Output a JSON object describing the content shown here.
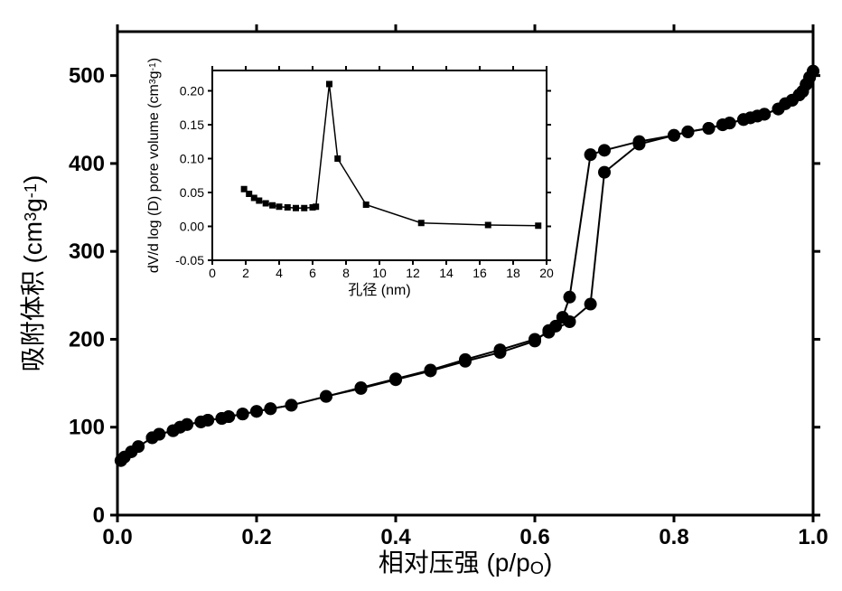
{
  "main_chart": {
    "type": "line",
    "xlabel": "相对压强 (p/p",
    "xlabel_sub": "O",
    "xlabel_close": ")",
    "ylabel": "吸附体积  (cm",
    "ylabel_sup": "3",
    "ylabel_mid": "g",
    "ylabel_sup2": "-1",
    "ylabel_close": ")",
    "xlim": [
      0.0,
      1.0
    ],
    "ylim": [
      0,
      550
    ],
    "xticks": [
      0.0,
      0.2,
      0.4,
      0.6,
      0.8,
      1.0
    ],
    "yticks": [
      0,
      100,
      200,
      300,
      400,
      500
    ],
    "xtick_labels": [
      "0.0",
      "0.2",
      "0.4",
      "0.6",
      "0.8",
      "1.0"
    ],
    "ytick_labels": [
      "0",
      "100",
      "200",
      "300",
      "400",
      "500"
    ],
    "label_fontsize": 28,
    "tick_fontsize": 24,
    "tick_fontweight": "bold",
    "axis_line_width": 3,
    "tick_length": 8,
    "line_color": "#000000",
    "line_width": 2,
    "marker_size": 7,
    "marker_color": "#000000",
    "series_adsorption": {
      "x": [
        0.005,
        0.01,
        0.02,
        0.03,
        0.05,
        0.06,
        0.08,
        0.09,
        0.1,
        0.12,
        0.13,
        0.15,
        0.16,
        0.18,
        0.2,
        0.22,
        0.25,
        0.3,
        0.35,
        0.4,
        0.45,
        0.5,
        0.55,
        0.6,
        0.62,
        0.65,
        0.68,
        0.7,
        0.75,
        0.8,
        0.82,
        0.85,
        0.87,
        0.88,
        0.9,
        0.91,
        0.92,
        0.93,
        0.95,
        0.96,
        0.97,
        0.98,
        0.985,
        0.99,
        0.995,
        1.0
      ],
      "y": [
        62,
        66,
        72,
        78,
        88,
        92,
        96,
        100,
        103,
        106,
        108,
        110,
        112,
        115,
        118,
        121,
        125,
        135,
        145,
        155,
        165,
        177,
        188,
        200,
        208,
        220,
        240,
        390,
        422,
        432,
        436,
        440,
        444,
        446,
        450,
        452,
        454,
        456,
        462,
        468,
        472,
        478,
        482,
        490,
        498,
        505
      ]
    },
    "series_desorption": {
      "x": [
        1.0,
        0.995,
        0.99,
        0.985,
        0.98,
        0.97,
        0.96,
        0.95,
        0.93,
        0.92,
        0.91,
        0.9,
        0.88,
        0.87,
        0.85,
        0.82,
        0.8,
        0.75,
        0.7,
        0.68,
        0.65,
        0.64,
        0.63,
        0.62,
        0.6,
        0.55,
        0.5,
        0.45,
        0.4,
        0.35,
        0.3,
        0.25,
        0.22,
        0.2,
        0.18,
        0.16,
        0.15,
        0.13,
        0.12,
        0.1,
        0.09,
        0.08,
        0.06,
        0.05
      ],
      "y": [
        505,
        498,
        490,
        482,
        478,
        472,
        468,
        462,
        456,
        454,
        452,
        450,
        446,
        444,
        440,
        436,
        432,
        425,
        415,
        410,
        248,
        225,
        215,
        210,
        198,
        185,
        175,
        164,
        154,
        144,
        135,
        125,
        121,
        118,
        115,
        112,
        110,
        108,
        106,
        103,
        100,
        96,
        92,
        88
      ]
    }
  },
  "inset_chart": {
    "type": "line",
    "xlabel": "孔径 (nm)",
    "ylabel_line1": "dV/d log (D) pore volume (cm",
    "ylabel_sup": "3",
    "ylabel_mid": "g",
    "ylabel_sup2": "-1",
    "ylabel_close": ")",
    "xlim": [
      0,
      20
    ],
    "ylim": [
      -0.05,
      0.23
    ],
    "xticks": [
      0,
      2,
      4,
      6,
      8,
      10,
      12,
      14,
      16,
      18,
      20
    ],
    "yticks": [
      -0.05,
      0.0,
      0.05,
      0.1,
      0.15,
      0.2
    ],
    "xtick_labels": [
      "0",
      "2",
      "4",
      "6",
      "8",
      "10",
      "12",
      "14",
      "16",
      "18",
      "20"
    ],
    "ytick_labels": [
      "-0.05",
      "0.00",
      "0.05",
      "0.10",
      "0.15",
      "0.20"
    ],
    "label_fontsize": 16,
    "tick_fontsize": 14,
    "axis_line_width": 2,
    "tick_length": 5,
    "line_color": "#000000",
    "line_width": 1.5,
    "marker_size": 3.5,
    "marker_color": "#000000",
    "data": {
      "x": [
        1.9,
        2.2,
        2.5,
        2.8,
        3.2,
        3.6,
        4.0,
        4.5,
        5.0,
        5.5,
        6.0,
        6.2,
        7.0,
        7.5,
        9.2,
        12.5,
        16.5,
        19.5
      ],
      "y": [
        0.055,
        0.048,
        0.042,
        0.038,
        0.034,
        0.031,
        0.029,
        0.028,
        0.027,
        0.027,
        0.028,
        0.029,
        0.21,
        0.1,
        0.032,
        0.005,
        0.002,
        0.001
      ]
    }
  },
  "colors": {
    "background": "#ffffff",
    "axis": "#000000",
    "text": "#000000"
  }
}
